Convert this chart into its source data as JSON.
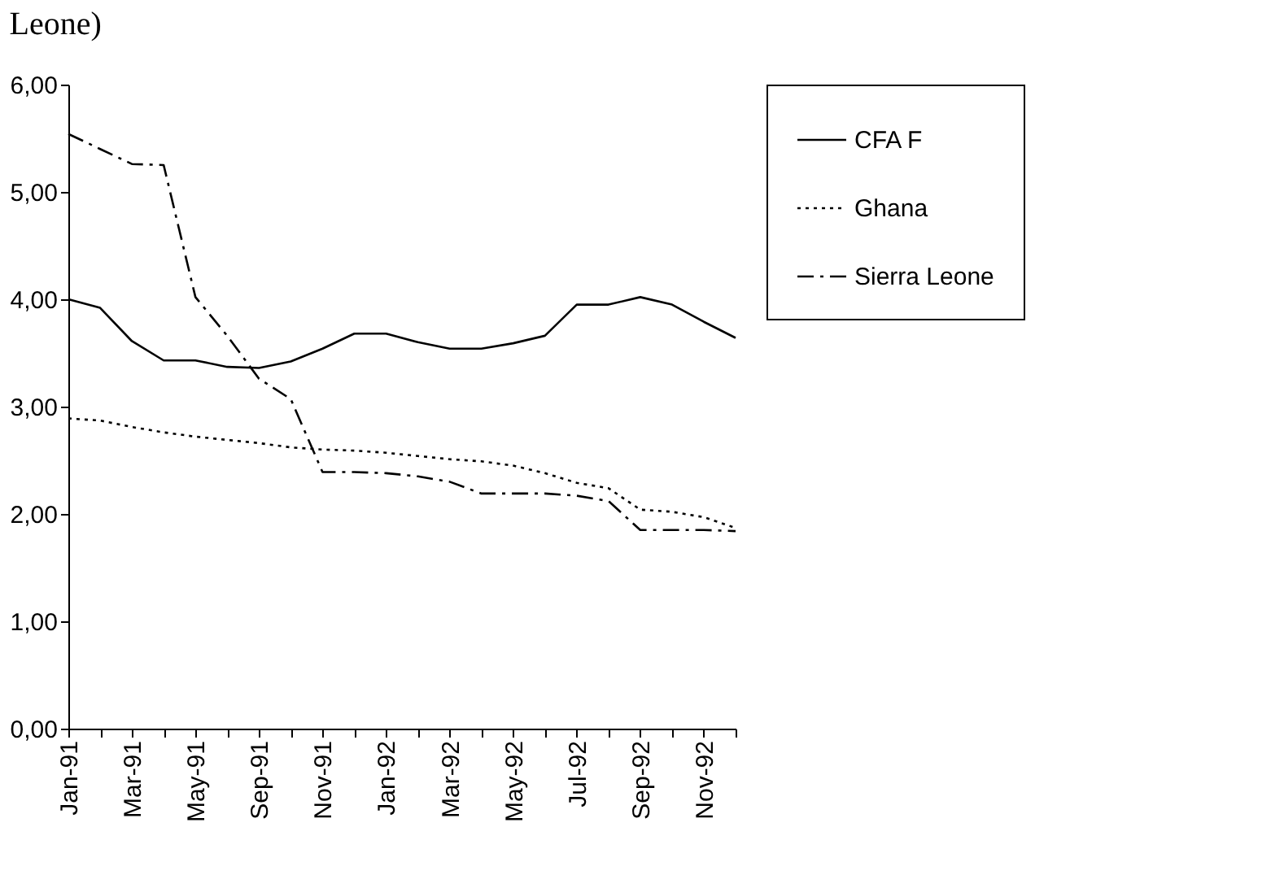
{
  "chart_data": {
    "type": "line",
    "title": "Leone)",
    "categories": [
      "Jan-91",
      null,
      "Mar-91",
      null,
      "May-91",
      null,
      "Sep-91",
      null,
      "Nov-91",
      null,
      "Jan-92",
      null,
      "Mar-92",
      null,
      "May-92",
      null,
      "Jul-92",
      null,
      "Sep-92",
      null,
      "Nov-92",
      null
    ],
    "series": [
      {
        "name": "CFA F",
        "color": "#000000",
        "line_style": "solid",
        "values": [
          4.0,
          3.92,
          3.61,
          3.43,
          3.43,
          3.37,
          3.36,
          3.42,
          3.54,
          3.68,
          3.68,
          3.6,
          3.54,
          3.54,
          3.59,
          3.66,
          3.95,
          3.95,
          4.02,
          3.95,
          3.79,
          3.64
        ]
      },
      {
        "name": "Ghana",
        "color": "#000000",
        "line_style": "dotted",
        "values": [
          2.89,
          2.87,
          2.81,
          2.76,
          2.72,
          2.69,
          2.66,
          2.62,
          2.6,
          2.59,
          2.57,
          2.54,
          2.51,
          2.49,
          2.45,
          2.38,
          2.29,
          2.24,
          2.04,
          2.02,
          1.97,
          1.87
        ]
      },
      {
        "name": "Sierra Leone",
        "color": "#000000",
        "line_style": "dashed",
        "values": [
          5.54,
          5.4,
          5.26,
          5.25,
          4.02,
          3.66,
          3.26,
          3.07,
          2.39,
          2.39,
          2.38,
          2.35,
          2.3,
          2.19,
          2.19,
          2.19,
          2.17,
          2.12,
          1.85,
          1.85,
          1.85,
          1.84
        ]
      }
    ],
    "ylim": [
      0,
      6
    ],
    "yticks": [
      {
        "value": 0,
        "label": "0,00"
      },
      {
        "value": 1,
        "label": "1,00"
      },
      {
        "value": 2,
        "label": "2,00"
      },
      {
        "value": 3,
        "label": "3,00"
      },
      {
        "value": 4,
        "label": "4,00"
      },
      {
        "value": 5,
        "label": "5,00"
      },
      {
        "value": 6,
        "label": "6,00"
      }
    ],
    "grid": false,
    "legend": "right",
    "marker": "none"
  }
}
